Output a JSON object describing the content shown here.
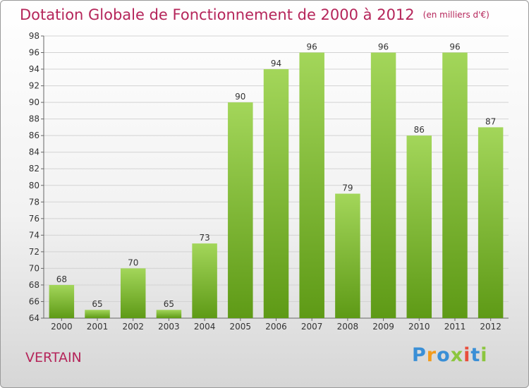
{
  "chart_data": {
    "type": "bar",
    "title": "Dotation Globale de Fonctionnement de 2000 à 2012",
    "unit": "(en milliers d'€)",
    "categories": [
      "2000",
      "2001",
      "2002",
      "2003",
      "2004",
      "2005",
      "2006",
      "2007",
      "2008",
      "2009",
      "2010",
      "2011",
      "2012"
    ],
    "values": [
      68,
      65,
      70,
      65,
      73,
      90,
      94,
      96,
      79,
      96,
      86,
      96,
      87
    ],
    "ylim": [
      64,
      98
    ],
    "yticks": [
      64,
      66,
      68,
      70,
      72,
      74,
      76,
      78,
      80,
      82,
      84,
      86,
      88,
      90,
      92,
      94,
      96,
      98
    ],
    "grid": true,
    "bar_color": "#7dbb2a"
  },
  "place": "VERTAIN",
  "logo": {
    "letters": [
      {
        "ch": "P",
        "color": "#3a8fd6"
      },
      {
        "ch": "r",
        "color": "#f29b1d"
      },
      {
        "ch": "o",
        "color": "#3a8fd6"
      },
      {
        "ch": "x",
        "color": "#8cc63f"
      },
      {
        "ch": "i",
        "color": "#e94e3c"
      },
      {
        "ch": "t",
        "color": "#3a8fd6"
      },
      {
        "ch": "i",
        "color": "#8cc63f"
      }
    ]
  }
}
